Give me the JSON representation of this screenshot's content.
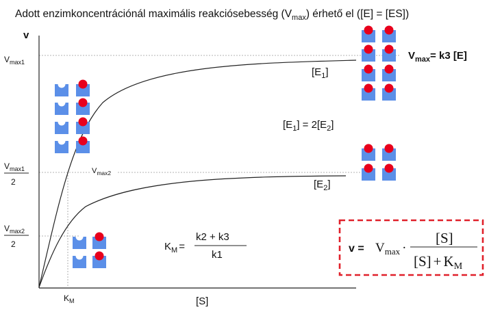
{
  "title": {
    "prefix": "Adott enzimkoncentrációnál maximális reakciósebesség (V",
    "sub": "max",
    "suffix": ") érhető el ([E] = [ES])"
  },
  "axes": {
    "y_label": "v",
    "x_label": "[S]"
  },
  "ticks": {
    "vmax1": {
      "base": "V",
      "sub": "max1"
    },
    "vmax1_half": {
      "base": "V",
      "sub": "max1",
      "den": "2"
    },
    "vmax2_half": {
      "base": "V",
      "sub": "max2",
      "den": "2"
    },
    "km": {
      "base": "K",
      "sub": "M"
    }
  },
  "labels": {
    "vmax2_inline": {
      "base": "V",
      "sub": "max2"
    },
    "e1": {
      "open": "[E",
      "sub": "1",
      "close": "]"
    },
    "e2": {
      "open": "[E",
      "sub": "2",
      "close": "]"
    },
    "ratio": {
      "a_open": "[E",
      "a_sub": "1",
      "mid": "]  = 2[E",
      "b_sub": "2",
      "close": "]"
    },
    "vmax_eq": {
      "base": "V",
      "sub": "max",
      "rest": "= k3 [E]"
    }
  },
  "km_formula": {
    "lhs_base": "K",
    "lhs_sub": "M",
    "eq": "=",
    "num": "k2  +  k3",
    "den": "k1"
  },
  "mm_formula": {
    "lhs": "v =",
    "vmax_base": "V",
    "vmax_sub": "max",
    "dot": "·",
    "num": "[S]",
    "den_s": "[S]",
    "den_plus": "+",
    "den_k": "K",
    "den_k_sub": "M"
  },
  "colors": {
    "enzyme": "#5b8fe8",
    "substrate": "#e8001c",
    "curve": "#222222",
    "guide": "#9a9a9a",
    "box_border": "#e0202a"
  },
  "icons": [
    "enzyme-icon",
    "substrate-icon"
  ]
}
